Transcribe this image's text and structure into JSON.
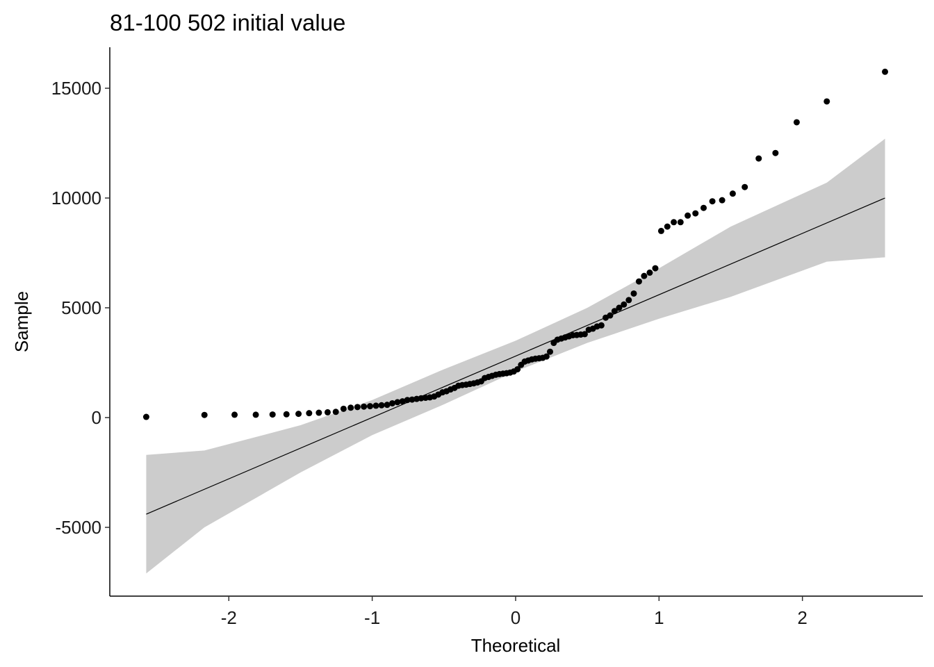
{
  "chart_data": {
    "type": "scatter",
    "title": "81-100 502 initial value",
    "x_label": "Theoretical",
    "y_label": "Sample",
    "color": "#000000",
    "x": [
      -2.576,
      -2.17,
      -1.96,
      -1.812,
      -1.695,
      -1.598,
      -1.514,
      -1.44,
      -1.372,
      -1.311,
      -1.254,
      -1.2,
      -1.15,
      -1.103,
      -1.058,
      -1.015,
      -0.974,
      -0.935,
      -0.896,
      -0.86,
      -0.824,
      -0.789,
      -0.755,
      -0.722,
      -0.69,
      -0.659,
      -0.628,
      -0.598,
      -0.568,
      -0.539,
      -0.51,
      -0.482,
      -0.454,
      -0.426,
      -0.399,
      -0.372,
      -0.345,
      -0.319,
      -0.292,
      -0.266,
      -0.24,
      -0.215,
      -0.189,
      -0.164,
      -0.138,
      -0.113,
      -0.088,
      -0.063,
      -0.038,
      -0.013,
      0.013,
      0.038,
      0.063,
      0.088,
      0.113,
      0.138,
      0.164,
      0.189,
      0.215,
      0.24,
      0.266,
      0.292,
      0.319,
      0.345,
      0.372,
      0.399,
      0.426,
      0.454,
      0.482,
      0.51,
      0.539,
      0.568,
      0.598,
      0.628,
      0.659,
      0.69,
      0.722,
      0.755,
      0.789,
      0.824,
      0.86,
      0.896,
      0.935,
      0.974,
      1.015,
      1.058,
      1.103,
      1.15,
      1.2,
      1.254,
      1.311,
      1.372,
      1.44,
      1.514,
      1.598,
      1.695,
      1.812,
      1.96,
      2.17,
      2.576
    ],
    "values": [
      30,
      120,
      130,
      130,
      140,
      150,
      170,
      200,
      220,
      240,
      260,
      400,
      450,
      480,
      500,
      520,
      540,
      560,
      580,
      650,
      700,
      740,
      800,
      820,
      850,
      880,
      900,
      920,
      960,
      1050,
      1150,
      1200,
      1280,
      1350,
      1450,
      1480,
      1500,
      1530,
      1560,
      1600,
      1650,
      1800,
      1850,
      1900,
      1950,
      1980,
      2000,
      2020,
      2050,
      2100,
      2200,
      2400,
      2550,
      2600,
      2650,
      2680,
      2700,
      2720,
      2780,
      3000,
      3400,
      3550,
      3600,
      3650,
      3700,
      3750,
      3760,
      3780,
      3800,
      4000,
      4050,
      4150,
      4200,
      4550,
      4650,
      4850,
      5000,
      5150,
      5350,
      5650,
      6200,
      6450,
      6600,
      6800,
      8500,
      8700,
      8900,
      8900,
      9200,
      9300,
      9550,
      9850,
      9900,
      10200,
      10500,
      11800,
      12050,
      13450,
      14400,
      15750
    ],
    "reference_line": {
      "x": [
        -2.576,
        2.576
      ],
      "y": [
        -4400,
        10000
      ]
    },
    "band": {
      "color": "#cccccc",
      "x": [
        -2.576,
        -2.17,
        -1.5,
        -1,
        -0.5,
        0,
        0.5,
        1,
        1.5,
        2.17,
        2.576
      ],
      "lower": [
        -7100,
        -5000,
        -2500,
        -800,
        600,
        2100,
        3400,
        4500,
        5500,
        7100,
        7300
      ],
      "upper": [
        -1700,
        -1500,
        -350,
        800,
        2200,
        3500,
        5000,
        6800,
        8700,
        10700,
        12700
      ]
    },
    "xlim": [
      -2.83,
      2.84
    ],
    "ylim": [
      -8133,
      16867
    ],
    "xticks": [
      -2,
      -1,
      0,
      1,
      2
    ],
    "yticks": [
      -5000,
      0,
      5000,
      10000,
      15000
    ]
  }
}
